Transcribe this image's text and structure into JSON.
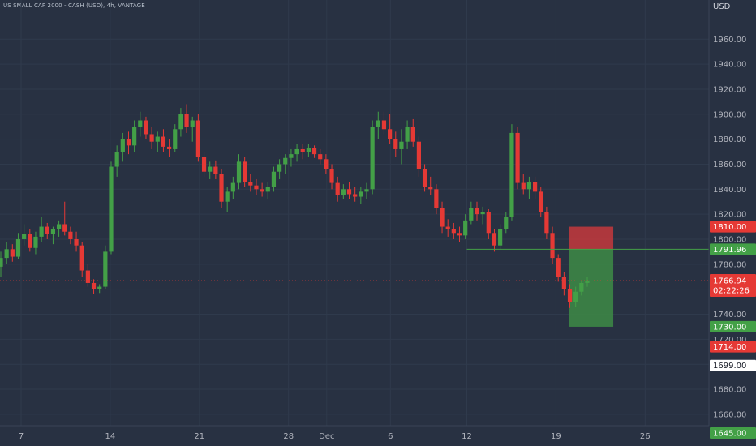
{
  "header": {
    "symbol_line": "US SMALL CAP 2000 - CASH (USD), 4h, VANTAGE",
    "currency": "USD"
  },
  "colors": {
    "background": "#283142",
    "up": "#43a047",
    "down": "#e53935",
    "axis_text": "#b2b5be",
    "grid": "#2f3a4c",
    "level_line": "#43a047",
    "stop_zone": "#c4383c",
    "target_zone": "#3d8b45"
  },
  "chart_data": {
    "type": "candlestick",
    "timeframe": "4h",
    "ylim": [
      1645,
      1990
    ],
    "y_ticks": [
      1960,
      1940,
      1920,
      1900,
      1880,
      1860,
      1840,
      1820,
      1800,
      1780,
      1760,
      1740,
      1720,
      1700,
      1680,
      1660
    ],
    "y_tick_labels": [
      "1960.00",
      "1940.00",
      "1920.00",
      "1900.00",
      "1880.00",
      "1860.00",
      "1840.00",
      "1820.00",
      "1800.00",
      "1780.00",
      "1760.00",
      "1740.00",
      "1720.00",
      "1700.00",
      "1680.00",
      "1660.00"
    ],
    "x_labels": [
      {
        "label": "7",
        "day": 7
      },
      {
        "label": "14",
        "day": 14
      },
      {
        "label": "21",
        "day": 21
      },
      {
        "label": "28",
        "day": 28
      },
      {
        "label": "Dec",
        "day": 31
      },
      {
        "label": "6",
        "day": 36
      },
      {
        "label": "12",
        "day": 42
      },
      {
        "label": "19",
        "day": 49
      },
      {
        "label": "26",
        "day": 56
      }
    ],
    "price_badges": [
      {
        "label": "1810.00",
        "value": 1810,
        "kind": "stop"
      },
      {
        "label": "1791.96",
        "value": 1791.96,
        "kind": "entry"
      },
      {
        "label": "1766.94",
        "value": 1766.94,
        "kind": "last",
        "countdown": "02:22:26"
      },
      {
        "label": "1730.00",
        "value": 1730,
        "kind": "target"
      },
      {
        "label": "1714.00",
        "value": 1714,
        "kind": "stop"
      },
      {
        "label": "1699.00",
        "value": 1699,
        "kind": "neutral"
      },
      {
        "label": "1645.00",
        "value": 1645,
        "kind": "target"
      }
    ],
    "horizontal_level": {
      "value": 1791.96,
      "from_day": 42
    },
    "position_tool": {
      "entry": 1791.96,
      "stop": 1810,
      "target": 1730,
      "from_day": 50,
      "to_day": 53.5
    },
    "candles_ohlc": [
      [
        1778,
        1790,
        1770,
        1785
      ],
      [
        1785,
        1798,
        1780,
        1792
      ],
      [
        1792,
        1796,
        1782,
        1786
      ],
      [
        1786,
        1805,
        1784,
        1800
      ],
      [
        1800,
        1812,
        1795,
        1804
      ],
      [
        1804,
        1808,
        1790,
        1793
      ],
      [
        1793,
        1806,
        1788,
        1802
      ],
      [
        1802,
        1818,
        1798,
        1810
      ],
      [
        1810,
        1813,
        1800,
        1804
      ],
      [
        1804,
        1810,
        1796,
        1808
      ],
      [
        1808,
        1815,
        1802,
        1812
      ],
      [
        1812,
        1830,
        1803,
        1806
      ],
      [
        1806,
        1810,
        1796,
        1800
      ],
      [
        1800,
        1806,
        1790,
        1795
      ],
      [
        1795,
        1798,
        1770,
        1775
      ],
      [
        1775,
        1780,
        1762,
        1765
      ],
      [
        1765,
        1768,
        1756,
        1760
      ],
      [
        1760,
        1764,
        1757,
        1762
      ],
      [
        1762,
        1795,
        1760,
        1790
      ],
      [
        1790,
        1862,
        1788,
        1858
      ],
      [
        1858,
        1875,
        1850,
        1870
      ],
      [
        1870,
        1885,
        1862,
        1880
      ],
      [
        1880,
        1886,
        1868,
        1875
      ],
      [
        1875,
        1895,
        1870,
        1890
      ],
      [
        1890,
        1902,
        1882,
        1895
      ],
      [
        1895,
        1898,
        1880,
        1884
      ],
      [
        1884,
        1890,
        1872,
        1878
      ],
      [
        1878,
        1886,
        1870,
        1882
      ],
      [
        1882,
        1888,
        1870,
        1874
      ],
      [
        1874,
        1880,
        1866,
        1872
      ],
      [
        1872,
        1892,
        1870,
        1888
      ],
      [
        1888,
        1905,
        1882,
        1900
      ],
      [
        1900,
        1908,
        1885,
        1890
      ],
      [
        1890,
        1898,
        1878,
        1895
      ],
      [
        1895,
        1900,
        1862,
        1866
      ],
      [
        1866,
        1870,
        1850,
        1854
      ],
      [
        1854,
        1862,
        1848,
        1858
      ],
      [
        1858,
        1863,
        1848,
        1852
      ],
      [
        1852,
        1856,
        1825,
        1830
      ],
      [
        1830,
        1842,
        1822,
        1838
      ],
      [
        1838,
        1850,
        1832,
        1845
      ],
      [
        1845,
        1868,
        1840,
        1862
      ],
      [
        1862,
        1866,
        1842,
        1846
      ],
      [
        1846,
        1852,
        1838,
        1843
      ],
      [
        1843,
        1848,
        1835,
        1840
      ],
      [
        1840,
        1845,
        1834,
        1838
      ],
      [
        1838,
        1846,
        1832,
        1842
      ],
      [
        1842,
        1858,
        1838,
        1854
      ],
      [
        1854,
        1864,
        1848,
        1860
      ],
      [
        1860,
        1868,
        1852,
        1865
      ],
      [
        1865,
        1872,
        1858,
        1868
      ],
      [
        1868,
        1876,
        1862,
        1872
      ],
      [
        1872,
        1876,
        1864,
        1870
      ],
      [
        1870,
        1876,
        1866,
        1873
      ],
      [
        1873,
        1875,
        1865,
        1868
      ],
      [
        1868,
        1872,
        1860,
        1864
      ],
      [
        1864,
        1868,
        1852,
        1856
      ],
      [
        1856,
        1860,
        1840,
        1845
      ],
      [
        1845,
        1850,
        1830,
        1835
      ],
      [
        1835,
        1844,
        1832,
        1840
      ],
      [
        1840,
        1846,
        1832,
        1836
      ],
      [
        1836,
        1842,
        1830,
        1834
      ],
      [
        1834,
        1842,
        1828,
        1838
      ],
      [
        1838,
        1845,
        1832,
        1840
      ],
      [
        1840,
        1895,
        1836,
        1890
      ],
      [
        1890,
        1902,
        1880,
        1895
      ],
      [
        1895,
        1902,
        1884,
        1888
      ],
      [
        1888,
        1900,
        1876,
        1880
      ],
      [
        1880,
        1886,
        1866,
        1872
      ],
      [
        1872,
        1888,
        1860,
        1878
      ],
      [
        1878,
        1895,
        1872,
        1890
      ],
      [
        1890,
        1896,
        1874,
        1878
      ],
      [
        1878,
        1882,
        1850,
        1856
      ],
      [
        1856,
        1860,
        1838,
        1842
      ],
      [
        1842,
        1850,
        1835,
        1840
      ],
      [
        1840,
        1844,
        1820,
        1825
      ],
      [
        1825,
        1830,
        1805,
        1810
      ],
      [
        1810,
        1816,
        1802,
        1808
      ],
      [
        1808,
        1813,
        1800,
        1805
      ],
      [
        1805,
        1810,
        1798,
        1803
      ],
      [
        1803,
        1820,
        1800,
        1815
      ],
      [
        1815,
        1830,
        1812,
        1825
      ],
      [
        1825,
        1830,
        1815,
        1820
      ],
      [
        1820,
        1826,
        1812,
        1822
      ],
      [
        1822,
        1824,
        1800,
        1805
      ],
      [
        1805,
        1808,
        1790,
        1795
      ],
      [
        1795,
        1812,
        1792,
        1808
      ],
      [
        1808,
        1822,
        1805,
        1818
      ],
      [
        1818,
        1892,
        1815,
        1885
      ],
      [
        1885,
        1890,
        1840,
        1845
      ],
      [
        1845,
        1852,
        1836,
        1840
      ],
      [
        1840,
        1850,
        1832,
        1846
      ],
      [
        1846,
        1850,
        1832,
        1838
      ],
      [
        1838,
        1842,
        1818,
        1822
      ],
      [
        1822,
        1826,
        1800,
        1805
      ],
      [
        1805,
        1810,
        1780,
        1785
      ],
      [
        1785,
        1788,
        1766,
        1770
      ],
      [
        1770,
        1774,
        1755,
        1760
      ],
      [
        1760,
        1764,
        1745,
        1750
      ],
      [
        1750,
        1762,
        1746,
        1758
      ],
      [
        1758,
        1767,
        1755,
        1765
      ],
      [
        1765,
        1770,
        1762,
        1767
      ]
    ]
  }
}
